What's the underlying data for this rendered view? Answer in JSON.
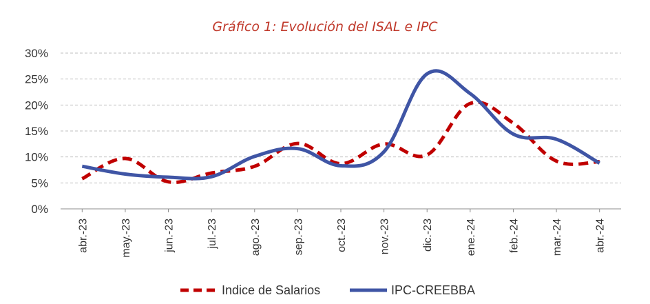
{
  "colors": {
    "title": "#c0392b",
    "salarios": "#c00000",
    "ipc": "#3f55a5",
    "grid": "#bfbfbf",
    "axis": "#8c8c8c"
  },
  "chart_data": {
    "type": "line",
    "title": "Gráfico 1: Evolución del ISAL e IPC",
    "categories": [
      "abr.-23",
      "may.-23",
      "jun.-23",
      "jul.-23",
      "ago.-23",
      "sep.-23",
      "oct.-23",
      "nov.-23",
      "dic.-23",
      "ene.-24",
      "feb.-24",
      "mar.-24",
      "abr.-24"
    ],
    "y_ticks": [
      "0%",
      "5%",
      "10%",
      "15%",
      "20%",
      "25%",
      "30%"
    ],
    "ylim": [
      0,
      30
    ],
    "grid": true,
    "legend_position": "bottom",
    "series": [
      {
        "name": "Indice de Salarios",
        "style": "dashed",
        "values": [
          5.8,
          9.7,
          5.2,
          6.9,
          8.2,
          12.6,
          8.7,
          12.5,
          10.4,
          20.3,
          16.5,
          9.2,
          9.1
        ]
      },
      {
        "name": "IPC-CREEBBA",
        "style": "solid",
        "values": [
          8.2,
          6.7,
          6.1,
          6.2,
          10.1,
          11.6,
          8.3,
          11.0,
          26.0,
          22.2,
          14.4,
          13.4,
          8.8
        ]
      }
    ]
  }
}
